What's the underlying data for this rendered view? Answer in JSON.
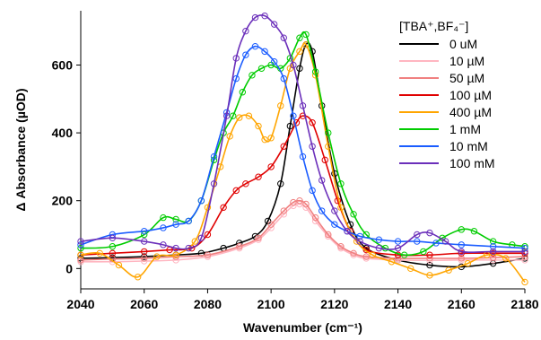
{
  "chart_data": {
    "type": "line",
    "xlabel": "Wavenumber (cm⁻¹)",
    "ylabel": "Δ Absorbance (µOD)",
    "xlim": [
      2040,
      2180
    ],
    "ylim": [
      -60,
      760
    ],
    "x_ticks": [
      2040,
      2060,
      2080,
      2100,
      2120,
      2140,
      2160,
      2180
    ],
    "y_ticks": [
      0,
      200,
      400,
      600
    ],
    "grid": false,
    "legend_placement": "top-right",
    "legend_title": "[TBA⁺,BF₄⁻]",
    "series": [
      {
        "name": "0 uM",
        "color": "#000000",
        "x": [
          2040,
          2050,
          2060,
          2070,
          2078,
          2085,
          2090,
          2095,
          2099,
          2103,
          2106,
          2109,
          2111,
          2113,
          2116,
          2120,
          2125,
          2130,
          2140,
          2150,
          2160,
          2170,
          2180
        ],
        "values": [
          30,
          32,
          35,
          40,
          45,
          60,
          75,
          95,
          140,
          250,
          420,
          590,
          660,
          640,
          480,
          280,
          130,
          60,
          25,
          10,
          5,
          15,
          30
        ]
      },
      {
        "name": "10 µM",
        "color": "#ffb6c1",
        "x": [
          2040,
          2050,
          2060,
          2070,
          2080,
          2090,
          2096,
          2100,
          2104,
          2107,
          2109,
          2111,
          2114,
          2118,
          2122,
          2126,
          2130,
          2140,
          2150,
          2160,
          2170,
          2180
        ],
        "values": [
          20,
          20,
          22,
          25,
          35,
          60,
          85,
          120,
          160,
          185,
          190,
          180,
          140,
          95,
          60,
          40,
          30,
          25,
          24,
          25,
          25,
          25
        ]
      },
      {
        "name": "50 µM",
        "color": "#f08080",
        "x": [
          2040,
          2050,
          2060,
          2070,
          2080,
          2090,
          2096,
          2100,
          2104,
          2107,
          2109,
          2111,
          2114,
          2118,
          2122,
          2126,
          2130,
          2140,
          2150,
          2160,
          2170,
          2180
        ],
        "values": [
          25,
          28,
          30,
          35,
          40,
          65,
          90,
          130,
          170,
          195,
          200,
          190,
          150,
          100,
          65,
          45,
          35,
          30,
          30,
          30,
          32,
          35
        ]
      },
      {
        "name": "100 µM",
        "color": "#e00000",
        "x": [
          2040,
          2050,
          2060,
          2068,
          2075,
          2080,
          2085,
          2089,
          2092,
          2096,
          2100,
          2104,
          2108,
          2110,
          2113,
          2117,
          2121,
          2125,
          2130,
          2140,
          2150,
          2160,
          2170,
          2180
        ],
        "values": [
          40,
          45,
          50,
          55,
          60,
          100,
          180,
          230,
          250,
          270,
          300,
          360,
          430,
          450,
          430,
          320,
          200,
          110,
          55,
          40,
          40,
          45,
          45,
          45
        ]
      },
      {
        "name": "400 µM",
        "color": "#ffa500",
        "x": [
          2040,
          2046,
          2052,
          2058,
          2064,
          2070,
          2076,
          2080,
          2084,
          2087,
          2090,
          2093,
          2096,
          2098,
          2100,
          2103,
          2106,
          2109,
          2111,
          2114,
          2118,
          2122,
          2127,
          2132,
          2138,
          2144,
          2150,
          2156,
          2162,
          2168,
          2174,
          2180
        ],
        "values": [
          40,
          45,
          10,
          -25,
          35,
          40,
          80,
          180,
          300,
          390,
          445,
          450,
          420,
          380,
          385,
          480,
          590,
          640,
          660,
          570,
          360,
          180,
          80,
          40,
          20,
          0,
          -20,
          -5,
          15,
          40,
          30,
          -40
        ]
      },
      {
        "name": "1 mM",
        "color": "#00cc00",
        "x": [
          2040,
          2050,
          2060,
          2066,
          2070,
          2074,
          2078,
          2082,
          2085,
          2088,
          2091,
          2094,
          2097,
          2100,
          2103,
          2106,
          2109,
          2111,
          2114,
          2118,
          2122,
          2126,
          2130,
          2136,
          2142,
          2148,
          2154,
          2160,
          2164,
          2170,
          2176,
          2180
        ],
        "values": [
          60,
          65,
          100,
          150,
          145,
          140,
          200,
          320,
          400,
          450,
          520,
          570,
          590,
          600,
          590,
          620,
          680,
          690,
          580,
          400,
          250,
          160,
          100,
          60,
          40,
          50,
          90,
          115,
          110,
          80,
          70,
          65
        ]
      },
      {
        "name": "10 mM",
        "color": "#1a5cff",
        "x": [
          2040,
          2050,
          2060,
          2066,
          2070,
          2074,
          2078,
          2082,
          2086,
          2089,
          2092,
          2095,
          2098,
          2101,
          2104,
          2107,
          2110,
          2113,
          2116,
          2120,
          2124,
          2128,
          2134,
          2140,
          2146,
          2152,
          2160,
          2170,
          2180
        ],
        "values": [
          70,
          100,
          110,
          120,
          130,
          140,
          200,
          330,
          460,
          560,
          630,
          655,
          640,
          610,
          560,
          450,
          330,
          230,
          170,
          130,
          110,
          95,
          85,
          80,
          80,
          75,
          70,
          65,
          60
        ]
      },
      {
        "name": "100 mM",
        "color": "#6b2fba",
        "x": [
          2040,
          2050,
          2060,
          2066,
          2070,
          2074,
          2078,
          2082,
          2086,
          2089,
          2092,
          2095,
          2098,
          2101,
          2104,
          2107,
          2110,
          2113,
          2116,
          2120,
          2124,
          2128,
          2134,
          2140,
          2146,
          2150,
          2155,
          2160,
          2170,
          2180
        ],
        "values": [
          80,
          90,
          80,
          70,
          60,
          60,
          90,
          250,
          450,
          620,
          700,
          740,
          745,
          720,
          680,
          600,
          480,
          360,
          260,
          170,
          110,
          80,
          60,
          60,
          100,
          105,
          80,
          50,
          50,
          50
        ]
      }
    ]
  }
}
